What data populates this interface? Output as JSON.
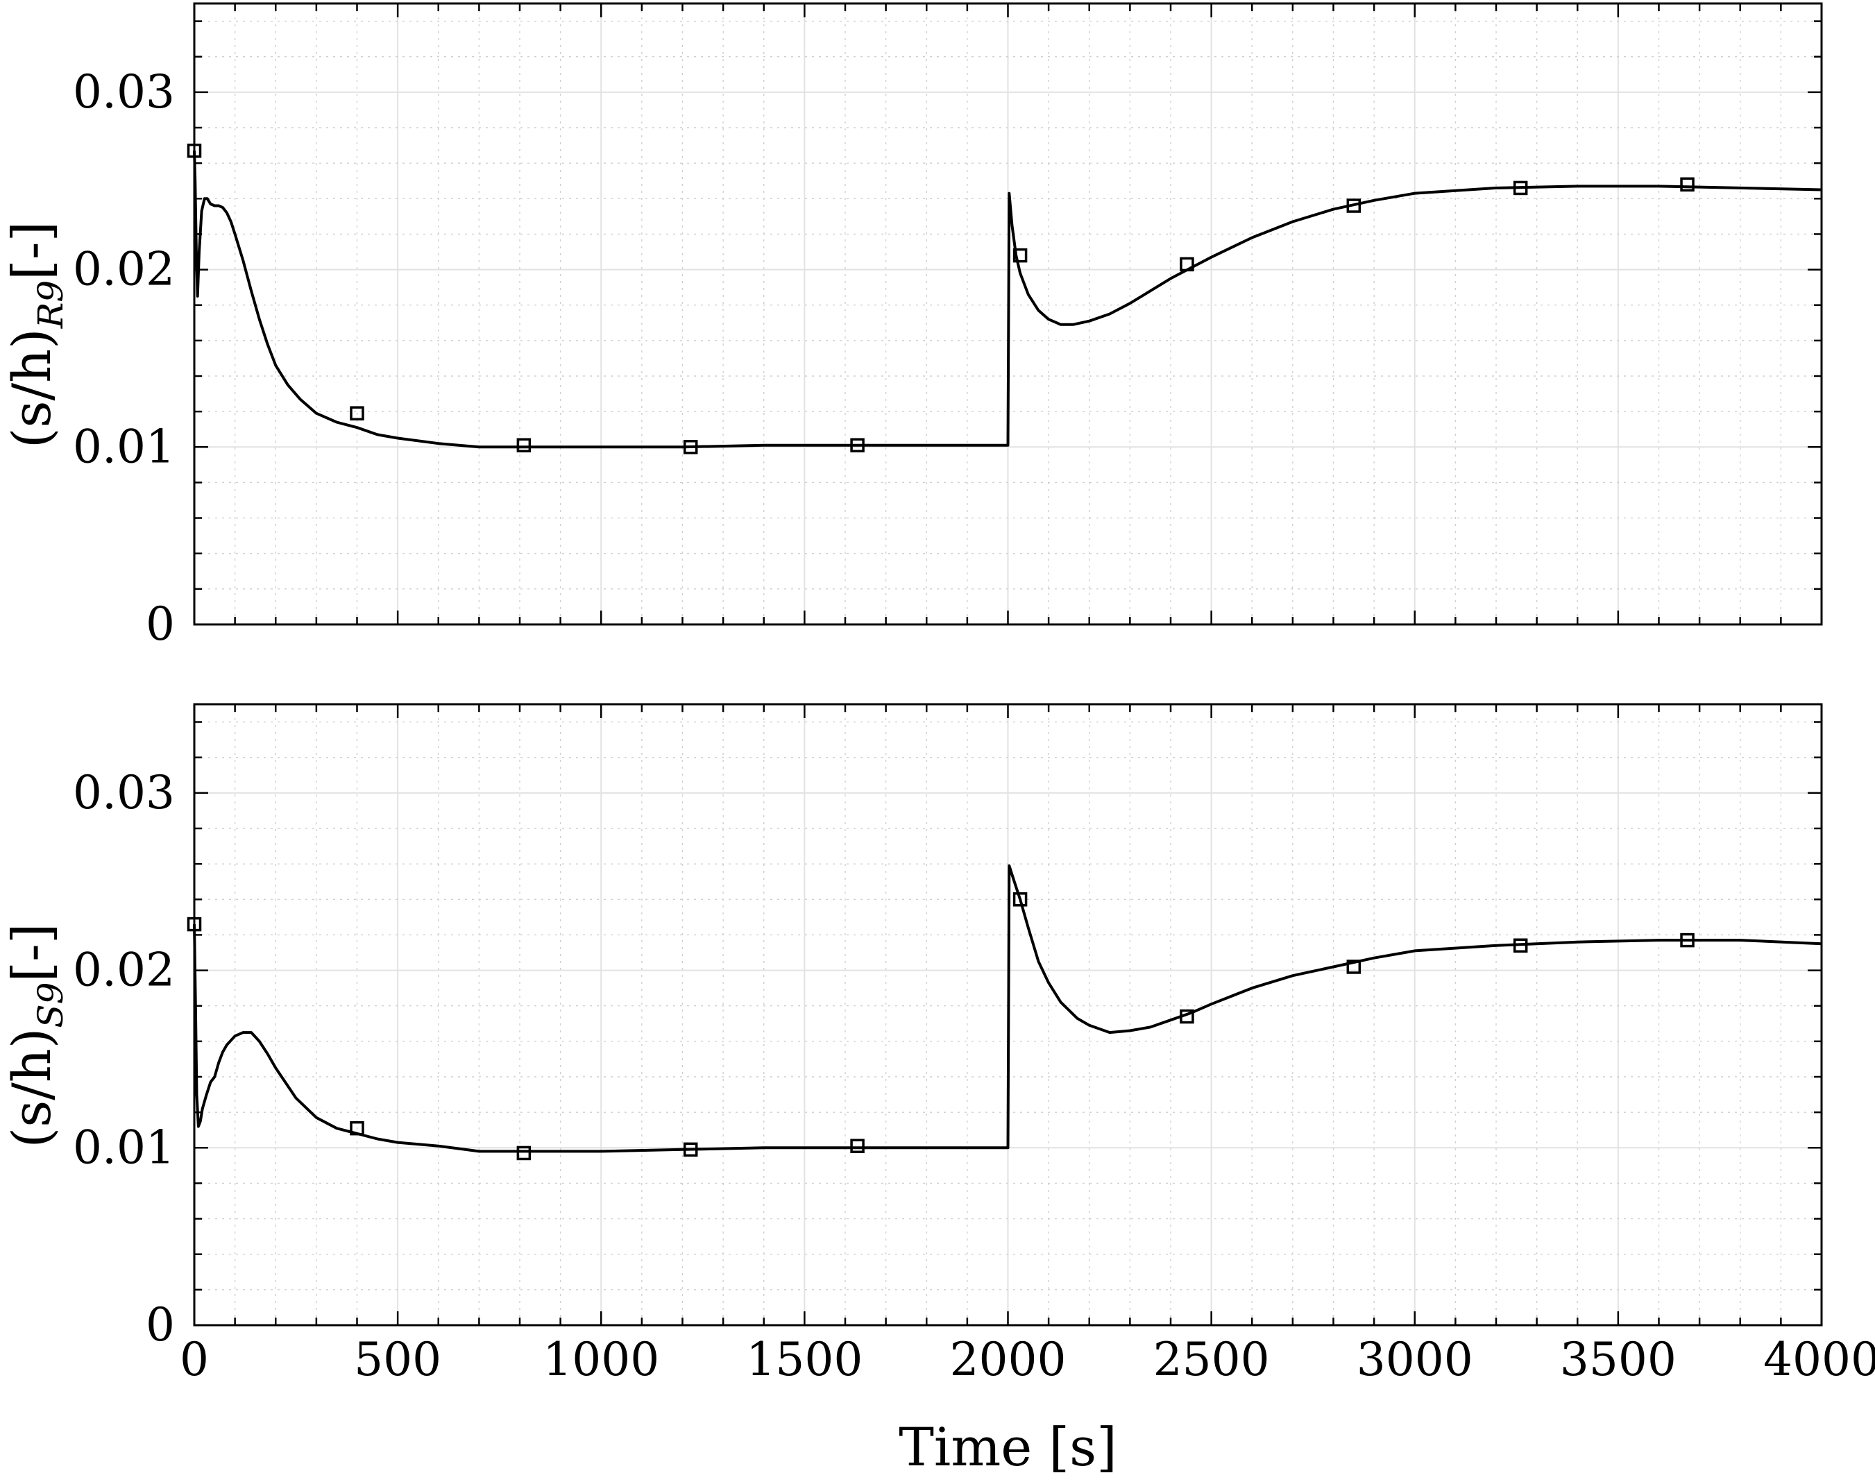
{
  "chart_data": [
    {
      "type": "line",
      "ylabel_main": "(s/h)",
      "ylabel_sub": "R9",
      "ylabel_unit": "[-]",
      "xlabel": "",
      "xlim": [
        0,
        4000
      ],
      "ylim": [
        0,
        0.035
      ],
      "x_ticks": [
        0,
        500,
        1000,
        1500,
        2000,
        2500,
        3000,
        3500,
        4000
      ],
      "x_tick_labels_visible": false,
      "y_ticks": [
        0,
        0.01,
        0.02,
        0.03
      ],
      "y_tick_labels": [
        "0",
        "0.01",
        "0.02",
        "0.03"
      ],
      "grid": true,
      "minor_grid": true,
      "series": [
        {
          "marker": "square",
          "x": [
            0,
            2,
            5,
            8,
            12,
            18,
            25,
            32,
            40,
            50,
            60,
            70,
            80,
            90,
            100,
            120,
            140,
            160,
            180,
            200,
            230,
            260,
            300,
            350,
            400,
            450,
            500,
            600,
            700,
            800,
            1000,
            1200,
            1400,
            1600,
            1800,
            2000,
            2003,
            2010,
            2020,
            2030,
            2050,
            2075,
            2100,
            2130,
            2160,
            2200,
            2250,
            2300,
            2350,
            2400,
            2450,
            2500,
            2600,
            2700,
            2800,
            2900,
            3000,
            3200,
            3400,
            3600,
            3800,
            4000
          ],
          "y": [
            0.0267,
            0.025,
            0.021,
            0.0185,
            0.021,
            0.0233,
            0.024,
            0.024,
            0.0237,
            0.0236,
            0.0236,
            0.0235,
            0.0232,
            0.0227,
            0.022,
            0.0205,
            0.0188,
            0.0172,
            0.0158,
            0.0146,
            0.0135,
            0.0127,
            0.0119,
            0.0114,
            0.0111,
            0.0107,
            0.0105,
            0.0102,
            0.01,
            0.01,
            0.01,
            0.01,
            0.0101,
            0.0101,
            0.0101,
            0.0101,
            0.0243,
            0.0225,
            0.0208,
            0.0198,
            0.0186,
            0.0177,
            0.0172,
            0.0169,
            0.0169,
            0.0171,
            0.0175,
            0.0181,
            0.0188,
            0.0195,
            0.0201,
            0.0207,
            0.0218,
            0.0227,
            0.0234,
            0.0239,
            0.0243,
            0.0246,
            0.0247,
            0.0247,
            0.0246,
            0.0245
          ],
          "marker_x": [
            0,
            400,
            810,
            1220,
            1630,
            2030,
            2440,
            2850,
            3260,
            3670
          ],
          "marker_y": [
            0.0267,
            0.0119,
            0.0101,
            0.01,
            0.0101,
            0.0208,
            0.0203,
            0.0236,
            0.0246,
            0.0248
          ]
        }
      ]
    },
    {
      "type": "line",
      "ylabel_main": "(s/h)",
      "ylabel_sub": "S9",
      "ylabel_unit": "[-]",
      "xlabel": "Time [s]",
      "xlim": [
        0,
        4000
      ],
      "ylim": [
        0,
        0.035
      ],
      "x_ticks": [
        0,
        500,
        1000,
        1500,
        2000,
        2500,
        3000,
        3500,
        4000
      ],
      "x_tick_labels": [
        "0",
        "500",
        "1000",
        "1500",
        "2000",
        "2500",
        "3000",
        "3500",
        "4000"
      ],
      "y_ticks": [
        0,
        0.01,
        0.02,
        0.03
      ],
      "y_tick_labels": [
        "0",
        "0.01",
        "0.02",
        "0.03"
      ],
      "grid": true,
      "minor_grid": true,
      "series": [
        {
          "marker": "square",
          "x": [
            0,
            3,
            6,
            10,
            15,
            20,
            30,
            40,
            50,
            60,
            70,
            80,
            100,
            120,
            140,
            160,
            180,
            200,
            250,
            300,
            350,
            400,
            450,
            500,
            600,
            700,
            800,
            1000,
            1200,
            1400,
            1600,
            1800,
            2000,
            2003,
            2010,
            2020,
            2030,
            2050,
            2075,
            2100,
            2130,
            2170,
            2200,
            2250,
            2300,
            2350,
            2400,
            2450,
            2500,
            2600,
            2700,
            2800,
            2900,
            3000,
            3200,
            3400,
            3600,
            3800,
            4000
          ],
          "y": [
            0.0226,
            0.018,
            0.013,
            0.0112,
            0.0115,
            0.0122,
            0.013,
            0.0137,
            0.014,
            0.0148,
            0.0154,
            0.0158,
            0.0163,
            0.0165,
            0.0165,
            0.016,
            0.0153,
            0.0145,
            0.0128,
            0.0117,
            0.0111,
            0.0108,
            0.0105,
            0.0103,
            0.0101,
            0.0098,
            0.0098,
            0.0098,
            0.0099,
            0.01,
            0.01,
            0.01,
            0.01,
            0.0259,
            0.0254,
            0.0247,
            0.024,
            0.0224,
            0.0205,
            0.0193,
            0.0182,
            0.0173,
            0.0169,
            0.0165,
            0.0166,
            0.0168,
            0.0172,
            0.0176,
            0.0181,
            0.019,
            0.0197,
            0.0202,
            0.0207,
            0.0211,
            0.0214,
            0.0216,
            0.0217,
            0.0217,
            0.0215
          ],
          "marker_x": [
            0,
            400,
            810,
            1220,
            1630,
            2030,
            2440,
            2850,
            3260,
            3670
          ],
          "marker_y": [
            0.0226,
            0.0111,
            0.0097,
            0.0099,
            0.0101,
            0.024,
            0.0174,
            0.0202,
            0.0214,
            0.0217
          ]
        }
      ]
    }
  ]
}
